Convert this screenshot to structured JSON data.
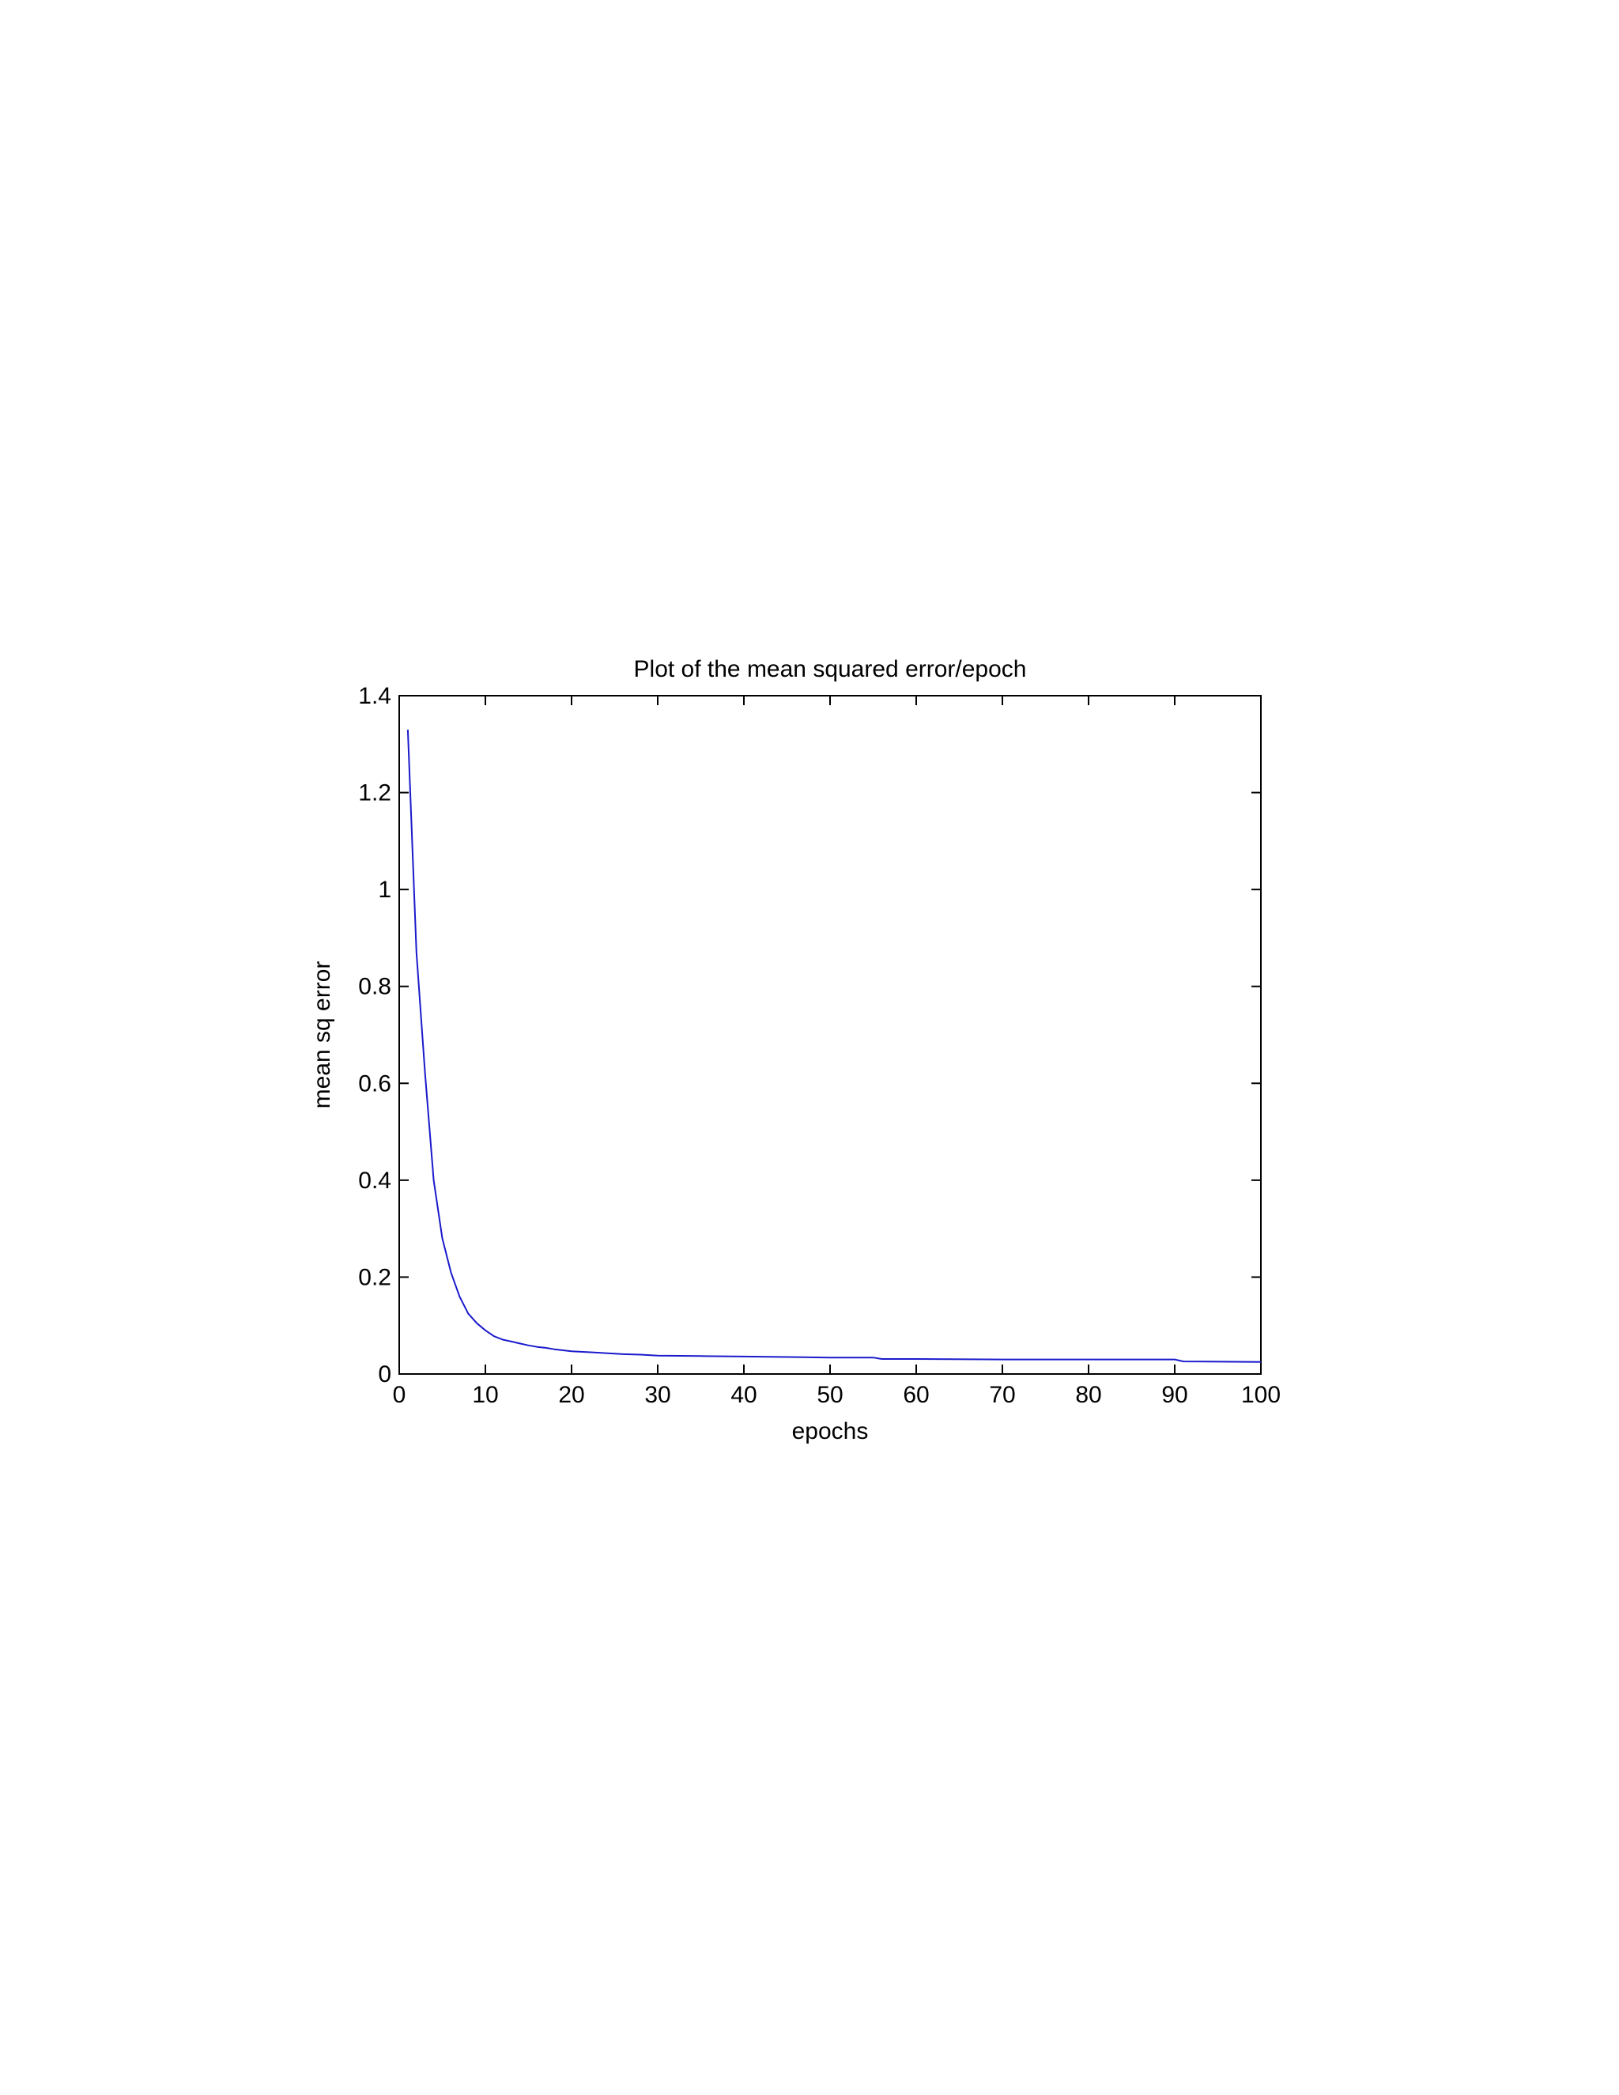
{
  "chart_data": {
    "type": "line",
    "title": "Plot of the mean squared error/epoch",
    "xlabel": "epochs",
    "ylabel": "mean sq error",
    "xlim": [
      0,
      100
    ],
    "ylim": [
      0,
      1.4
    ],
    "xticks": [
      0,
      10,
      20,
      30,
      40,
      50,
      60,
      70,
      80,
      90,
      100
    ],
    "xtick_labels": [
      "0",
      "10",
      "20",
      "30",
      "40",
      "50",
      "60",
      "70",
      "80",
      "90",
      "100"
    ],
    "yticks": [
      0,
      0.2,
      0.4,
      0.6,
      0.8,
      1.0,
      1.2,
      1.4
    ],
    "ytick_labels": [
      "0",
      "0.2",
      "0.4",
      "0.6",
      "0.8",
      "1",
      "1.2",
      "1.4"
    ],
    "grid": false,
    "legend": "none",
    "series": [
      {
        "color": "#1a1acc",
        "x": [
          1,
          2,
          3,
          4,
          5,
          6,
          7,
          8,
          9,
          10,
          11,
          12,
          13,
          14,
          15,
          16,
          17,
          18,
          19,
          20,
          22,
          24,
          26,
          28,
          30,
          35,
          40,
          45,
          50,
          55,
          56,
          60,
          70,
          80,
          90,
          91,
          100
        ],
        "values": [
          1.33,
          0.87,
          0.62,
          0.4,
          0.28,
          0.21,
          0.16,
          0.125,
          0.105,
          0.09,
          0.078,
          0.071,
          0.067,
          0.063,
          0.059,
          0.056,
          0.054,
          0.051,
          0.049,
          0.047,
          0.045,
          0.043,
          0.041,
          0.04,
          0.038,
          0.037,
          0.036,
          0.035,
          0.034,
          0.034,
          0.031,
          0.031,
          0.03,
          0.03,
          0.03,
          0.026,
          0.025
        ]
      }
    ]
  }
}
